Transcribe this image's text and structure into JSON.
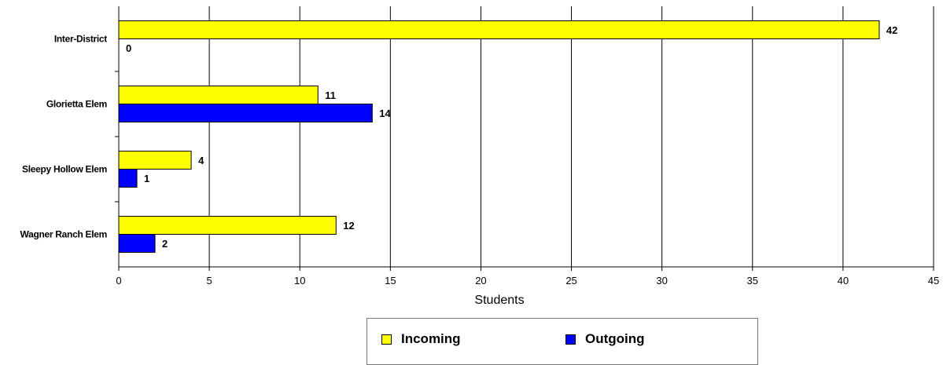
{
  "chart_data": {
    "type": "bar",
    "orientation": "horizontal",
    "categories": [
      "Inter-District",
      "Glorietta Elem",
      "Sleepy Hollow Elem",
      "Wagner Ranch Elem"
    ],
    "series": [
      {
        "name": "Incoming",
        "color": "#FFFF00",
        "values": [
          42,
          11,
          4,
          12
        ]
      },
      {
        "name": "Outgoing",
        "color": "#0000FF",
        "values": [
          0,
          14,
          1,
          2
        ]
      }
    ],
    "xlabel": "Students",
    "ylabel": "",
    "xlim": [
      0,
      45
    ],
    "x_ticks": [
      "0",
      "5",
      "10",
      "15",
      "20",
      "25",
      "30",
      "35",
      "40",
      "45"
    ],
    "grid": "vertical",
    "legend_placement": "bottom"
  }
}
